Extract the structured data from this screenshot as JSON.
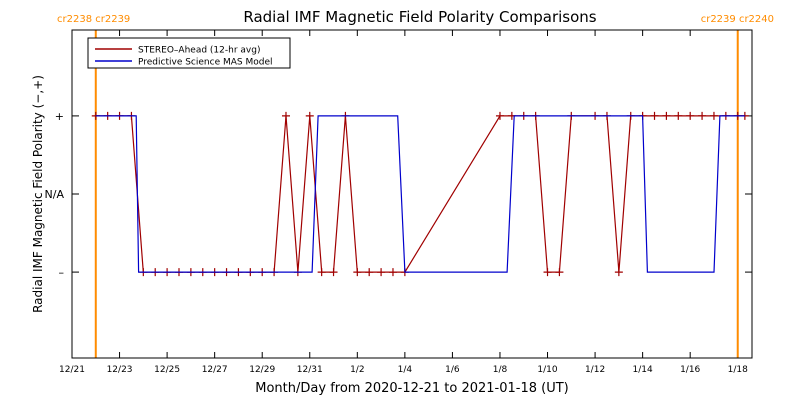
{
  "chart_data": {
    "type": "line",
    "title": "Radial IMF Magnetic Field Polarity Comparisons",
    "xlabel": "Month/Day from 2020-12-21 to 2021-01-18 (UT)",
    "ylabel": "Radial IMF Magnetic Field Polarity (−,+)",
    "x_unit": "days (tick labels show month/day)",
    "xlim": [
      0,
      28.6
    ],
    "ylim": [
      -2.1,
      2.1
    ],
    "x_ticks": [
      {
        "x": 0,
        "label": "12/21"
      },
      {
        "x": 2,
        "label": "12/23"
      },
      {
        "x": 4,
        "label": "12/25"
      },
      {
        "x": 6,
        "label": "12/27"
      },
      {
        "x": 8,
        "label": "12/29"
      },
      {
        "x": 10,
        "label": "12/31"
      },
      {
        "x": 12,
        "label": "1/2"
      },
      {
        "x": 14,
        "label": "1/4"
      },
      {
        "x": 16,
        "label": "1/6"
      },
      {
        "x": 18,
        "label": "1/8"
      },
      {
        "x": 20,
        "label": "1/10"
      },
      {
        "x": 22,
        "label": "1/12"
      },
      {
        "x": 24,
        "label": "1/14"
      },
      {
        "x": 26,
        "label": "1/16"
      },
      {
        "x": 28,
        "label": "1/18"
      }
    ],
    "y_ticks": [
      {
        "y": 1,
        "label": "+"
      },
      {
        "y": 0,
        "label": "N/A"
      },
      {
        "y": -1,
        "label": "–"
      }
    ],
    "carrington_markers": [
      {
        "x": 1.0,
        "label": "cr2238 cr2239",
        "anchor": "start"
      },
      {
        "x": 28.0,
        "label": "cr2239 cr2240",
        "anchor": "end"
      }
    ],
    "colors": {
      "marker_line": "#ff8c00",
      "marker_text": "#ff8c00"
    },
    "legend_position": "top-left",
    "series": [
      {
        "name": "STEREO–Ahead (12-hr avg)",
        "color": "#a00000",
        "markers": true,
        "points": [
          [
            1.0,
            1
          ],
          [
            1.5,
            1
          ],
          [
            2.0,
            1
          ],
          [
            2.5,
            1
          ],
          [
            3.0,
            -1
          ],
          [
            3.5,
            -1
          ],
          [
            4.0,
            -1
          ],
          [
            4.5,
            -1
          ],
          [
            5.0,
            -1
          ],
          [
            5.5,
            -1
          ],
          [
            6.0,
            -1
          ],
          [
            6.5,
            -1
          ],
          [
            7.0,
            -1
          ],
          [
            7.5,
            -1
          ],
          [
            8.0,
            -1
          ],
          [
            8.5,
            -1
          ],
          [
            9.0,
            1
          ],
          [
            9.5,
            -1
          ],
          [
            10.0,
            1
          ],
          [
            10.5,
            -1
          ],
          [
            11.0,
            -1
          ],
          [
            11.5,
            1
          ],
          [
            12.0,
            -1
          ],
          [
            12.5,
            -1
          ],
          [
            13.0,
            -1
          ],
          [
            13.5,
            -1
          ],
          [
            14.0,
            -1
          ],
          [
            18.0,
            1
          ],
          [
            18.5,
            1
          ],
          [
            19.0,
            1
          ],
          [
            19.5,
            1
          ],
          [
            20.0,
            -1
          ],
          [
            20.5,
            -1
          ],
          [
            21.0,
            1
          ],
          [
            22.0,
            1
          ],
          [
            22.5,
            1
          ],
          [
            23.0,
            -1
          ],
          [
            23.5,
            1
          ],
          [
            24.0,
            1
          ],
          [
            24.5,
            1
          ],
          [
            25.0,
            1
          ],
          [
            25.5,
            1
          ],
          [
            26.0,
            1
          ],
          [
            26.5,
            1
          ],
          [
            27.0,
            1
          ],
          [
            27.5,
            1
          ],
          [
            28.0,
            1
          ],
          [
            28.3,
            1
          ]
        ]
      },
      {
        "name": "Predictive Science MAS Model",
        "color": "#0000cc",
        "markers": false,
        "points": [
          [
            1.0,
            1
          ],
          [
            2.7,
            1
          ],
          [
            2.8,
            -1
          ],
          [
            10.1,
            -1
          ],
          [
            10.35,
            1
          ],
          [
            13.7,
            1
          ],
          [
            14.0,
            -1
          ],
          [
            18.3,
            -1
          ],
          [
            18.6,
            1
          ],
          [
            24.0,
            1
          ],
          [
            24.2,
            -1
          ],
          [
            27.0,
            -1
          ],
          [
            27.25,
            1
          ],
          [
            28.3,
            1
          ]
        ]
      }
    ]
  }
}
